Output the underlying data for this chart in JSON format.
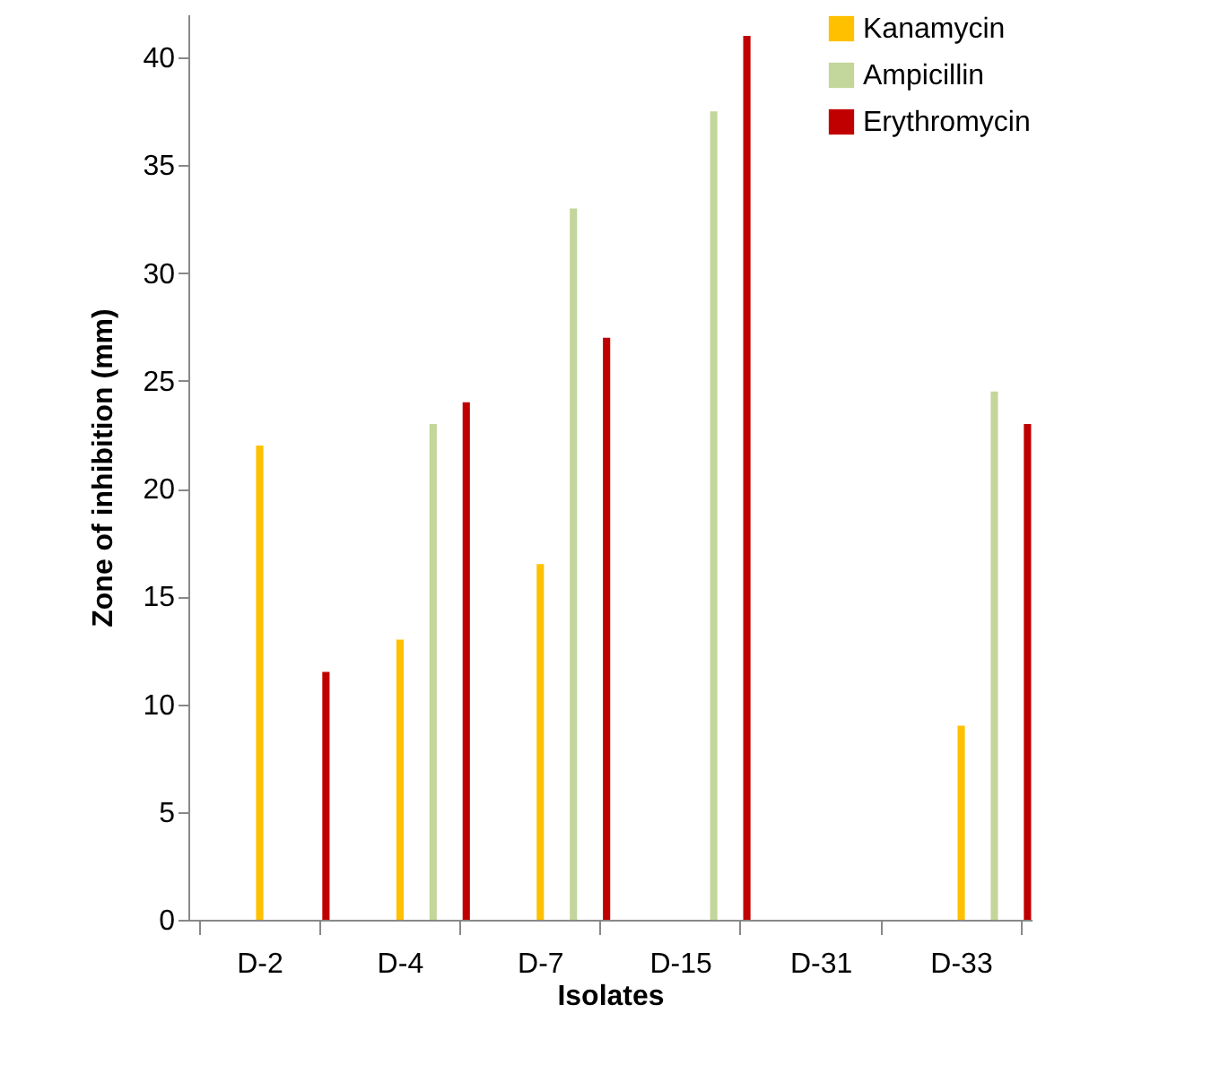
{
  "chart_data": {
    "type": "bar",
    "xlabel": "Isolates",
    "ylabel": "Zone of inhibition (mm)",
    "categories": [
      "D-2",
      "D-4",
      "D-7",
      "D-15",
      "D-31",
      "D-33"
    ],
    "series": [
      {
        "name": "Kanamycin",
        "color": "#ffc000",
        "values": [
          22,
          13,
          16.5,
          null,
          null,
          9
        ]
      },
      {
        "name": "Ampicillin",
        "color": "#c3d69b",
        "values": [
          null,
          23,
          33,
          37.5,
          null,
          24.5
        ]
      },
      {
        "name": "Erythromycin",
        "color": "#c00000",
        "values": [
          11.5,
          24,
          27,
          41,
          null,
          23
        ]
      }
    ],
    "ylim": [
      0,
      42
    ],
    "yticks": [
      0,
      5,
      10,
      15,
      20,
      25,
      30,
      35,
      40
    ],
    "legend": "top right"
  }
}
